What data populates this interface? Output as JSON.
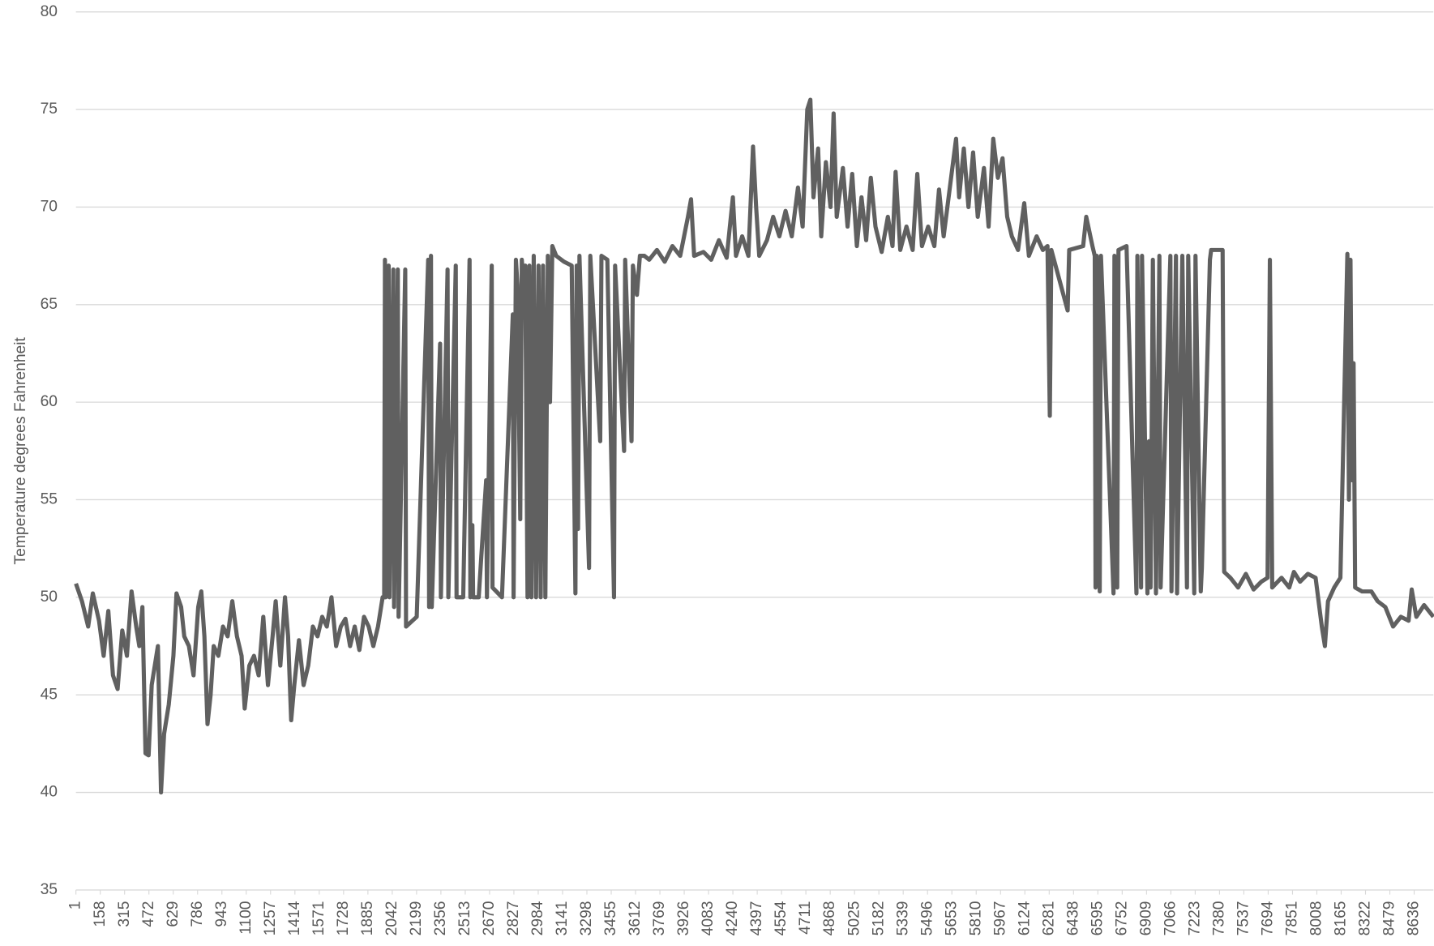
{
  "chart_data": {
    "type": "line",
    "y_label": "Temperature degrees Fahrenheit",
    "x": [
      1,
      40,
      80,
      110,
      150,
      180,
      210,
      240,
      270,
      300,
      330,
      360,
      390,
      410,
      430,
      450,
      470,
      490,
      510,
      530,
      550,
      570,
      600,
      630,
      650,
      680,
      700,
      730,
      760,
      790,
      810,
      830,
      850,
      870,
      890,
      920,
      950,
      980,
      1010,
      1040,
      1070,
      1090,
      1120,
      1150,
      1180,
      1210,
      1240,
      1270,
      1290,
      1320,
      1350,
      1370,
      1390,
      1410,
      1440,
      1470,
      1500,
      1530,
      1560,
      1590,
      1620,
      1650,
      1680,
      1710,
      1740,
      1770,
      1800,
      1830,
      1860,
      1890,
      1920,
      1950,
      1980,
      1990,
      1995,
      2000,
      2019,
      2024,
      2049,
      2054,
      2078,
      2083,
      2126,
      2131,
      2200,
      2274,
      2280,
      2292,
      2297,
      2351,
      2356,
      2399,
      2404,
      2452,
      2457,
      2500,
      2541,
      2546,
      2559,
      2564,
      2600,
      2648,
      2653,
      2684,
      2689,
      2750,
      2820,
      2825,
      2840,
      2850,
      2868,
      2878,
      2890,
      2900,
      2915,
      2927,
      2940,
      2955,
      2970,
      2986,
      3000,
      3015,
      3030,
      3046,
      3060,
      3075,
      3100,
      3150,
      3200,
      3224,
      3232,
      3241,
      3250,
      3312,
      3320,
      3384,
      3392,
      3430,
      3473,
      3480,
      3538,
      3545,
      3586,
      3595,
      3621,
      3640,
      3669,
      3700,
      3750,
      3800,
      3850,
      3900,
      3950,
      3970,
      3990,
      4050,
      4100,
      4150,
      4200,
      4240,
      4260,
      4300,
      4340,
      4370,
      4390,
      4410,
      4460,
      4500,
      4540,
      4580,
      4620,
      4660,
      4690,
      4720,
      4740,
      4760,
      4790,
      4810,
      4840,
      4870,
      4890,
      4910,
      4950,
      4980,
      5010,
      5040,
      5070,
      5100,
      5130,
      5160,
      5200,
      5240,
      5270,
      5290,
      5320,
      5360,
      5400,
      5430,
      5460,
      5500,
      5540,
      5570,
      5600,
      5640,
      5680,
      5700,
      5730,
      5760,
      5790,
      5820,
      5860,
      5890,
      5920,
      5950,
      5980,
      6010,
      6040,
      6080,
      6120,
      6150,
      6200,
      6240,
      6270,
      6285,
      6295,
      6400,
      6410,
      6500,
      6520,
      6560,
      6575,
      6580,
      6588,
      6607,
      6615,
      6696,
      6702,
      6720,
      6728,
      6780,
      6844,
      6850,
      6874,
      6880,
      6915,
      6925,
      6935,
      6950,
      6970,
      6992,
      7000,
      7063,
      7070,
      7099,
      7106,
      7140,
      7170,
      7178,
      7217,
      7225,
      7259,
      7266,
      7318,
      7326,
      7400,
      7410,
      7450,
      7500,
      7550,
      7600,
      7650,
      7690,
      7705,
      7720,
      7780,
      7830,
      7860,
      7900,
      7950,
      8000,
      8040,
      8060,
      8080,
      8120,
      8160,
      8205,
      8215,
      8225,
      8235,
      8245,
      8255,
      8300,
      8360,
      8400,
      8450,
      8500,
      8550,
      8600,
      8620,
      8650,
      8700,
      8760
    ],
    "series": [
      {
        "color": "#606060",
        "values": [
          50.7,
          49.8,
          48.5,
          50.2,
          48.8,
          47,
          49.3,
          46,
          45.3,
          48.3,
          47,
          50.3,
          48.5,
          47.5,
          49.5,
          42,
          41.9,
          45.5,
          46.5,
          47.5,
          40,
          43,
          44.5,
          47,
          50.2,
          49.5,
          48,
          47.5,
          46,
          49.5,
          50.3,
          48,
          43.5,
          45,
          47.5,
          47,
          48.5,
          48,
          49.8,
          48,
          47,
          44.3,
          46.5,
          47,
          46,
          49,
          45.5,
          48,
          49.8,
          46.5,
          50,
          48,
          43.7,
          45.5,
          47.8,
          45.5,
          46.5,
          48.5,
          48,
          49,
          48.5,
          50,
          47.5,
          48.5,
          48.9,
          47.5,
          48.5,
          47.3,
          49,
          48.5,
          47.5,
          48.5,
          50,
          50,
          67.3,
          50,
          67,
          50,
          66.8,
          49.5,
          66.8,
          49,
          66.8,
          48.5,
          49,
          67.3,
          49.5,
          67.5,
          49.5,
          63,
          50,
          66.8,
          50,
          67,
          50,
          50,
          67.3,
          50,
          53.7,
          50,
          50,
          56,
          50,
          67,
          50.5,
          50,
          64.5,
          50,
          67.3,
          66,
          54,
          67.3,
          66,
          67,
          50,
          67,
          50,
          67.5,
          50,
          67,
          50,
          67,
          50,
          67.5,
          60,
          68,
          67.5,
          67.2,
          67,
          50.2,
          67,
          53.5,
          67.5,
          51.5,
          67.5,
          58,
          67.5,
          67.3,
          50,
          67,
          57.5,
          67.3,
          58,
          67,
          65.5,
          67.5,
          67.5,
          67.3,
          67.8,
          67.2,
          68,
          67.5,
          69.5,
          70.4,
          67.5,
          67.7,
          67.3,
          68.3,
          67.4,
          70.5,
          67.5,
          68.5,
          67.5,
          73.1,
          70,
          67.5,
          68.3,
          69.5,
          68.5,
          69.8,
          68.5,
          71,
          69,
          75,
          75.5,
          70.5,
          73,
          68.5,
          72.3,
          70,
          74.8,
          69.5,
          72,
          69,
          71.7,
          68,
          70.5,
          68.3,
          71.5,
          69,
          67.7,
          69.5,
          68,
          71.8,
          67.8,
          69,
          67.8,
          71.7,
          68,
          69,
          68,
          70.9,
          68.5,
          71,
          73.5,
          70.5,
          73,
          70,
          72.8,
          69.5,
          72,
          69,
          73.5,
          71.5,
          72.5,
          69.5,
          68.5,
          67.8,
          70.2,
          67.5,
          68.5,
          67.8,
          68,
          59.3,
          67.8,
          64.7,
          67.8,
          68,
          69.5,
          68,
          67.5,
          50.5,
          67.5,
          50.3,
          67.5,
          50.2,
          67.5,
          50.5,
          67.8,
          68,
          50.2,
          67.5,
          50.5,
          67.5,
          50.2,
          58,
          50.5,
          67.3,
          50.2,
          67.5,
          50.5,
          67.5,
          50.3,
          67.5,
          50.2,
          67.5,
          50.5,
          67.5,
          50.2,
          67.5,
          50.3,
          51.5,
          67.3,
          67.8,
          67.8,
          51.3,
          51,
          50.5,
          51.2,
          50.4,
          50.8,
          51,
          67.3,
          50.5,
          51,
          50.5,
          51.3,
          50.8,
          51.2,
          51,
          48.5,
          47.5,
          49.8,
          50.5,
          51,
          67.6,
          55,
          67.3,
          56,
          62,
          50.5,
          50.3,
          50.3,
          49.8,
          49.5,
          48.5,
          49,
          48.8,
          50.4,
          49,
          49.6,
          49
        ]
      }
    ],
    "xlim": [
      1,
      8760
    ],
    "xticks": [
      1,
      158,
      315,
      472,
      629,
      786,
      943,
      1100,
      1257,
      1414,
      1571,
      1728,
      1885,
      2042,
      2199,
      2356,
      2513,
      2670,
      2827,
      2984,
      3141,
      3298,
      3455,
      3612,
      3769,
      3926,
      4083,
      4240,
      4397,
      4554,
      4711,
      4868,
      5025,
      5182,
      5339,
      5496,
      5653,
      5810,
      5967,
      6124,
      6281,
      6438,
      6595,
      6752,
      6909,
      7066,
      7223,
      7380,
      7537,
      7694,
      7851,
      8008,
      8165,
      8322,
      8479,
      8636
    ],
    "ylim": [
      35,
      80
    ],
    "yticks": [
      35,
      40,
      45,
      50,
      55,
      60,
      65,
      70,
      75,
      80
    ],
    "grid": true
  }
}
